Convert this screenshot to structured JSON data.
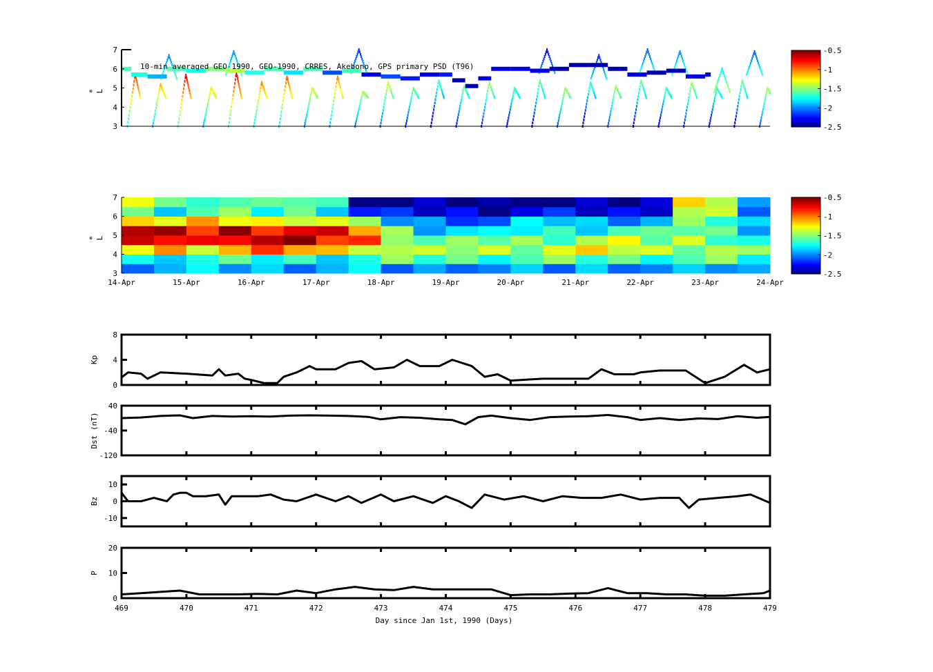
{
  "chart_data": [
    {
      "type": "heatmap",
      "panel": "psd-observations",
      "title": "10-min averaged GEO-1990, GEO-1990, CRRES, Akebono, GPS  primary PSD (T96)",
      "ylabel": "L*",
      "ylim": [
        3,
        7
      ],
      "yticks": [
        "3",
        "4",
        "5",
        "6",
        "7"
      ],
      "xlim_days": [
        469,
        479
      ],
      "colorbar": {
        "range": [
          -2.5,
          -0.5
        ],
        "ticks": [
          "-0.5",
          "-1",
          "-1.5",
          "-2",
          "-2.5"
        ],
        "colormap": "jet"
      },
      "orbit_passes": [
        {
          "start": 469.08,
          "Lmax": 5.7,
          "value": -0.8
        },
        {
          "start": 469.47,
          "Lmax": 5.2,
          "value": -1.1
        },
        {
          "start": 469.86,
          "Lmax": 5.7,
          "value": -0.7
        },
        {
          "start": 470.25,
          "Lmax": 5.0,
          "value": -1.2
        },
        {
          "start": 470.64,
          "Lmax": 5.8,
          "value": -0.7
        },
        {
          "start": 471.03,
          "Lmax": 5.3,
          "value": -1.0
        },
        {
          "start": 471.42,
          "Lmax": 5.6,
          "value": -0.9
        },
        {
          "start": 471.81,
          "Lmax": 5.0,
          "value": -1.3
        },
        {
          "start": 472.2,
          "Lmax": 5.6,
          "value": -1.0
        },
        {
          "start": 472.59,
          "Lmax": 4.8,
          "value": -1.4
        },
        {
          "start": 472.98,
          "Lmax": 5.3,
          "value": -1.3
        },
        {
          "start": 473.37,
          "Lmax": 5.0,
          "value": -1.5
        },
        {
          "start": 473.76,
          "Lmax": 5.4,
          "value": -1.6
        },
        {
          "start": 474.15,
          "Lmax": 5.1,
          "value": -1.5
        },
        {
          "start": 474.54,
          "Lmax": 5.3,
          "value": -1.4
        },
        {
          "start": 474.93,
          "Lmax": 5.0,
          "value": -1.6
        },
        {
          "start": 475.32,
          "Lmax": 5.4,
          "value": -1.5
        },
        {
          "start": 475.71,
          "Lmax": 5.0,
          "value": -1.4
        },
        {
          "start": 476.1,
          "Lmax": 5.3,
          "value": -1.6
        },
        {
          "start": 476.49,
          "Lmax": 5.1,
          "value": -1.4
        },
        {
          "start": 476.88,
          "Lmax": 5.4,
          "value": -1.5
        },
        {
          "start": 477.27,
          "Lmax": 5.0,
          "value": -1.6
        },
        {
          "start": 477.66,
          "Lmax": 5.3,
          "value": -1.4
        },
        {
          "start": 478.05,
          "Lmax": 5.0,
          "value": -1.6
        },
        {
          "start": 478.44,
          "Lmax": 5.4,
          "value": -1.5
        },
        {
          "start": 478.83,
          "Lmax": 5.0,
          "value": -1.4
        }
      ],
      "gps_peaks": [
        {
          "day": 469.72,
          "L": 6.7,
          "value": -2.0
        },
        {
          "day": 470.72,
          "L": 6.9,
          "value": -2.0
        },
        {
          "day": 472.65,
          "L": 7.0,
          "value": -2.2
        },
        {
          "day": 475.55,
          "L": 7.0,
          "value": -2.3
        },
        {
          "day": 476.35,
          "L": 6.7,
          "value": -2.2
        },
        {
          "day": 477.1,
          "L": 7.0,
          "value": -2.1
        },
        {
          "day": 477.6,
          "L": 6.9,
          "value": -2.0
        },
        {
          "day": 478.25,
          "L": 6.0,
          "value": -1.8
        },
        {
          "day": 478.75,
          "L": 6.9,
          "value": -2.1
        }
      ],
      "geo_track": [
        [
          469.0,
          6.0,
          -1.6
        ],
        [
          469.15,
          5.7,
          -1.7
        ],
        [
          469.4,
          5.6,
          -1.9
        ],
        [
          469.7,
          6.0,
          -1.6
        ],
        [
          470.0,
          5.9,
          -1.7
        ],
        [
          470.3,
          6.0,
          -1.5
        ],
        [
          470.6,
          5.9,
          -1.4
        ],
        [
          470.9,
          5.8,
          -1.7
        ],
        [
          471.2,
          6.0,
          -1.6
        ],
        [
          471.5,
          5.8,
          -1.8
        ],
        [
          471.8,
          6.0,
          -1.6
        ],
        [
          472.1,
          5.8,
          -2.1
        ],
        [
          472.4,
          5.9,
          -1.6
        ],
        [
          472.7,
          5.7,
          -2.3
        ],
        [
          473.0,
          5.6,
          -2.1
        ],
        [
          473.3,
          5.5,
          -2.2
        ],
        [
          473.6,
          5.7,
          -2.3
        ],
        [
          473.9,
          5.7,
          -2.2
        ],
        [
          474.1,
          5.4,
          -2.4
        ],
        [
          474.3,
          5.1,
          -2.4
        ],
        [
          474.5,
          5.5,
          -2.3
        ],
        [
          474.7,
          6.0,
          -2.3
        ],
        [
          475.0,
          6.0,
          -2.3
        ],
        [
          475.3,
          5.9,
          -2.3
        ],
        [
          475.6,
          6.0,
          -2.4
        ],
        [
          475.9,
          6.2,
          -2.4
        ],
        [
          476.2,
          6.2,
          -2.4
        ],
        [
          476.5,
          6.0,
          -2.4
        ],
        [
          476.8,
          5.7,
          -2.3
        ],
        [
          477.1,
          5.8,
          -2.4
        ],
        [
          477.4,
          5.9,
          -2.4
        ],
        [
          477.7,
          5.6,
          -2.3
        ],
        [
          478.0,
          5.7,
          -2.3
        ]
      ]
    },
    {
      "type": "heatmap",
      "panel": "psd-reanalysis",
      "ylabel": "L*",
      "ylim": [
        3,
        7
      ],
      "yticks": [
        "3",
        "4",
        "5",
        "6",
        "7"
      ],
      "xticks": [
        "14-Apr",
        "15-Apr",
        "16-Apr",
        "17-Apr",
        "18-Apr",
        "19-Apr",
        "20-Apr",
        "21-Apr",
        "22-Apr",
        "23-Apr",
        "24-Apr"
      ],
      "colorbar": {
        "range": [
          -2.5,
          -0.5
        ],
        "ticks": [
          "-0.5",
          "-1",
          "-1.5",
          "-2",
          "-2.5"
        ],
        "colormap": "jet"
      },
      "L_bins": [
        3.25,
        3.75,
        4.25,
        4.75,
        5.25,
        5.75,
        6.25,
        6.75
      ],
      "time_step_days": 0.5,
      "values": [
        [
          -1.9,
          -1.8,
          -1.2,
          -0.8,
          -0.6,
          -1.0,
          -1.6,
          -1.2
        ],
        [
          -1.9,
          -1.7,
          -1.1,
          -0.7,
          -0.7,
          -1.3,
          -1.7,
          -1.6
        ],
        [
          -1.9,
          -1.7,
          -1.2,
          -0.8,
          -0.8,
          -1.2,
          -1.6,
          -1.5
        ],
        [
          -1.9,
          -1.7,
          -1.1,
          -0.6,
          -0.6,
          -1.2,
          -1.6,
          -1.6
        ],
        [
          -1.9,
          -1.7,
          -1.0,
          -0.6,
          -0.7,
          -1.3,
          -1.7,
          -1.7
        ],
        [
          -1.9,
          -1.7,
          -1.0,
          -0.6,
          -0.7,
          -1.2,
          -1.6,
          -1.5
        ],
        [
          -1.9,
          -1.7,
          -1.2,
          -0.8,
          -0.8,
          -1.3,
          -1.7,
          -1.7
        ],
        [
          -1.9,
          -1.7,
          -1.2,
          -0.9,
          -1.0,
          -1.6,
          -2.2,
          -2.4
        ],
        [
          -2.0,
          -1.6,
          -1.4,
          -1.3,
          -1.5,
          -1.9,
          -2.3,
          -2.5
        ],
        [
          -2.0,
          -1.6,
          -1.5,
          -1.6,
          -1.8,
          -2.0,
          -2.3,
          -2.5
        ],
        [
          -1.9,
          -1.6,
          -1.4,
          -1.6,
          -1.8,
          -2.0,
          -2.3,
          -2.5
        ],
        [
          -2.0,
          -1.6,
          -1.4,
          -1.5,
          -1.9,
          -2.1,
          -2.4,
          -2.5
        ],
        [
          -2.0,
          -1.6,
          -1.4,
          -1.5,
          -1.7,
          -1.9,
          -2.3,
          -2.5
        ],
        [
          -2.0,
          -1.6,
          -1.3,
          -1.5,
          -1.7,
          -1.8,
          -2.3,
          -2.5
        ],
        [
          -1.9,
          -1.6,
          -1.3,
          -1.4,
          -1.7,
          -1.9,
          -2.3,
          -2.5
        ],
        [
          -1.9,
          -1.6,
          -1.3,
          -1.4,
          -1.6,
          -1.9,
          -2.3,
          -2.5
        ],
        [
          -2.0,
          -1.6,
          -1.4,
          -1.5,
          -1.7,
          -1.9,
          -2.2,
          -2.4
        ],
        [
          -2.0,
          -1.6,
          -1.4,
          -1.4,
          -1.5,
          -1.6,
          -1.4,
          -1.0
        ],
        [
          -1.9,
          -1.6,
          -1.4,
          -1.5,
          -1.6,
          -1.6,
          -1.5,
          -1.4
        ],
        [
          -2.0,
          -1.7,
          -1.6,
          -1.7,
          -1.8,
          -1.9,
          -2.0,
          -2.1
        ]
      ]
    },
    {
      "type": "line",
      "panel": "kp",
      "ylabel": "Kp",
      "ylim": [
        0,
        8
      ],
      "yticks": [
        "0",
        "4",
        "8"
      ],
      "x": [
        469.0,
        469.1,
        469.3,
        469.4,
        469.6,
        470.0,
        470.4,
        470.5,
        470.6,
        470.8,
        470.9,
        471.0,
        471.2,
        471.4,
        471.5,
        471.7,
        471.9,
        472.0,
        472.3,
        472.5,
        472.7,
        472.9,
        473.2,
        473.4,
        473.6,
        473.9,
        474.1,
        474.4,
        474.6,
        474.8,
        475.0,
        475.5,
        476.2,
        476.4,
        476.6,
        476.9,
        477.0,
        477.3,
        477.7,
        478.0,
        478.3,
        478.6,
        478.8,
        479.0
      ],
      "y": [
        1.2,
        2.0,
        1.8,
        1.0,
        2.0,
        1.8,
        1.5,
        2.5,
        1.5,
        1.8,
        1.0,
        0.8,
        0.3,
        0.3,
        1.3,
        2.0,
        3.0,
        2.5,
        2.5,
        3.5,
        3.8,
        2.5,
        2.8,
        4.0,
        3.0,
        3.0,
        4.0,
        3.0,
        1.3,
        1.7,
        0.7,
        1.0,
        1.0,
        2.5,
        1.7,
        1.7,
        2.0,
        2.3,
        2.3,
        0.3,
        1.3,
        3.2,
        2.0,
        2.5
      ]
    },
    {
      "type": "line",
      "panel": "dst",
      "ylabel": "Dst (nT)",
      "ylim": [
        -120,
        40
      ],
      "yticks": [
        "-120",
        "-40",
        "40"
      ],
      "x": [
        469.0,
        469.3,
        469.6,
        469.9,
        470.1,
        470.4,
        470.7,
        471.0,
        471.3,
        471.6,
        471.9,
        472.2,
        472.5,
        472.8,
        473.0,
        473.3,
        473.6,
        473.9,
        474.1,
        474.3,
        474.5,
        474.7,
        475.0,
        475.3,
        475.6,
        475.9,
        476.2,
        476.5,
        476.8,
        477.0,
        477.3,
        477.6,
        477.9,
        478.2,
        478.5,
        478.8,
        479.0
      ],
      "y": [
        0,
        2,
        7,
        9,
        0,
        7,
        5,
        6,
        5,
        8,
        9,
        8,
        7,
        4,
        -4,
        3,
        1,
        -4,
        -6,
        -20,
        3,
        8,
        0,
        -6,
        3,
        5,
        6,
        10,
        3,
        -6,
        0,
        -6,
        -1,
        -3,
        6,
        1,
        4
      ]
    },
    {
      "type": "line",
      "panel": "bz",
      "ylabel": "Bz",
      "ylim": [
        -15,
        15
      ],
      "yticks": [
        "-10",
        "0",
        "10"
      ],
      "x": [
        469.0,
        469.1,
        469.3,
        469.5,
        469.7,
        469.8,
        469.9,
        470.0,
        470.1,
        470.3,
        470.5,
        470.6,
        470.7,
        470.9,
        471.1,
        471.3,
        471.5,
        471.7,
        472.0,
        472.3,
        472.5,
        472.7,
        473.0,
        473.2,
        473.5,
        473.8,
        474.0,
        474.2,
        474.4,
        474.6,
        474.9,
        475.2,
        475.5,
        475.8,
        476.1,
        476.4,
        476.7,
        477.0,
        477.3,
        477.6,
        477.75,
        477.9,
        478.2,
        478.5,
        478.7,
        479.0
      ],
      "y": [
        5,
        0,
        0,
        2,
        0,
        4,
        5,
        5,
        3,
        3,
        4,
        -2,
        3,
        3,
        3,
        4,
        1,
        0,
        4,
        0,
        3,
        -1,
        4,
        0,
        3,
        -1,
        3,
        0,
        -4,
        4,
        1,
        3,
        0,
        3,
        2,
        2,
        4,
        1,
        2,
        2,
        -4,
        1,
        2,
        3,
        4,
        -1
      ]
    },
    {
      "type": "line",
      "panel": "p",
      "ylabel": "P",
      "xlabel": "Day since Jan 1st, 1990 (Days)",
      "ylim": [
        0,
        20
      ],
      "yticks": [
        "0",
        "10",
        "20"
      ],
      "xticks": [
        "469",
        "470",
        "471",
        "472",
        "473",
        "474",
        "475",
        "476",
        "477",
        "478",
        "479"
      ],
      "x": [
        469.0,
        469.3,
        469.6,
        469.9,
        470.2,
        470.5,
        470.8,
        471.1,
        471.4,
        471.7,
        472.0,
        472.3,
        472.6,
        472.9,
        473.2,
        473.5,
        473.8,
        474.1,
        474.4,
        474.7,
        475.0,
        475.3,
        475.6,
        475.9,
        476.2,
        476.5,
        476.8,
        477.1,
        477.4,
        477.7,
        478.0,
        478.3,
        478.6,
        478.9,
        479.0
      ],
      "y": [
        1.5,
        2.0,
        2.5,
        3.0,
        1.5,
        1.5,
        1.5,
        1.7,
        1.5,
        3.0,
        2.0,
        3.5,
        4.5,
        3.5,
        3.2,
        4.5,
        3.5,
        3.5,
        3.5,
        3.5,
        1.2,
        1.5,
        1.5,
        1.8,
        2.0,
        4.0,
        2.0,
        2.0,
        1.5,
        1.5,
        1.0,
        1.0,
        1.5,
        2.0,
        3.0
      ]
    }
  ],
  "colors": {
    "trace": "#000000",
    "observed_overlay": "#1a1a8c"
  }
}
